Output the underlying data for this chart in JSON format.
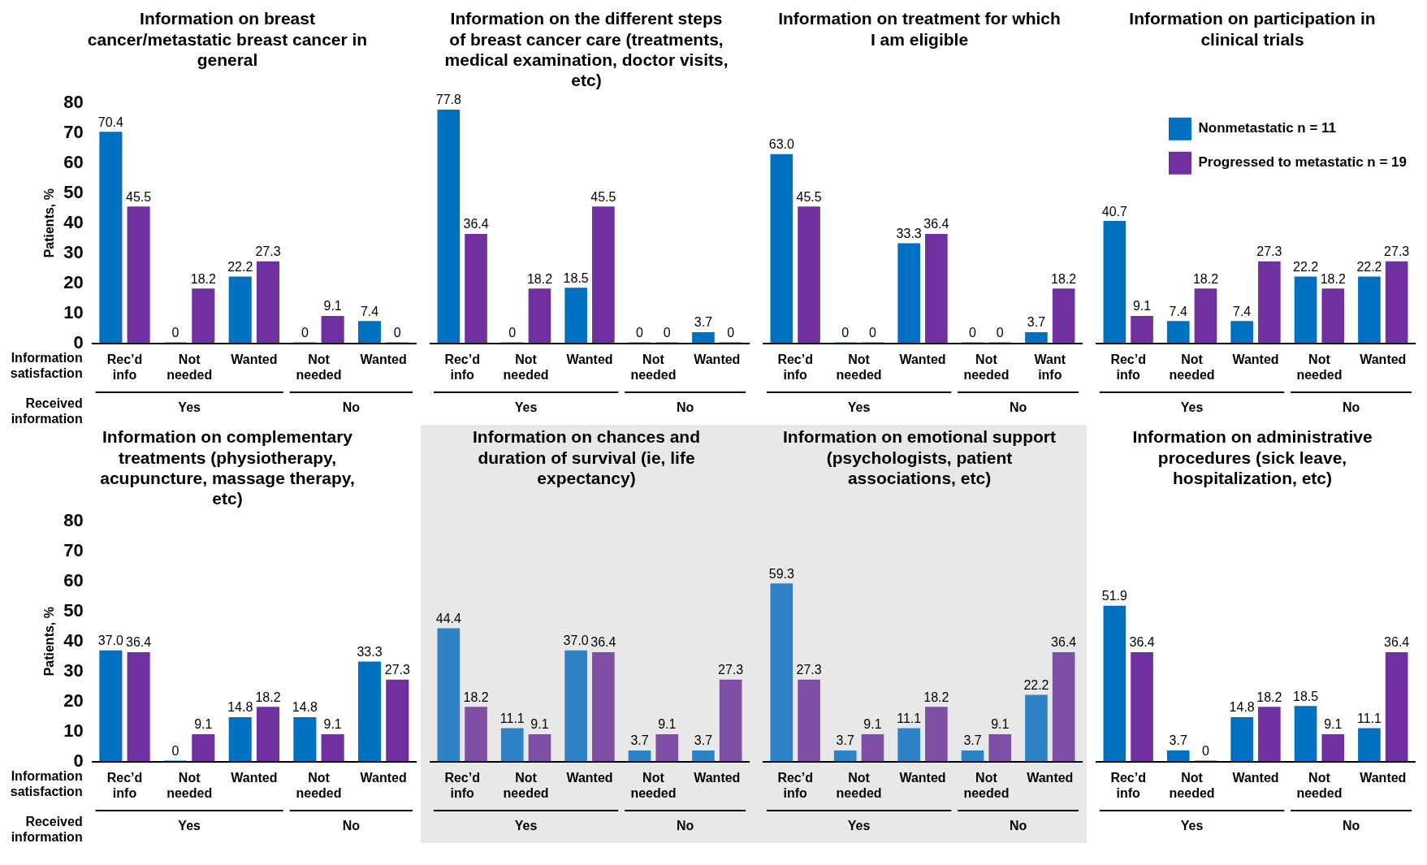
{
  "chart_data": [
    {
      "type": "bar",
      "title": "Information on breast cancer/metastatic breast cancer in general",
      "ylabel": "Patients, %",
      "categories": [
        "Rec’d info",
        "Not needed",
        "Wanted",
        "Not needed",
        "Wanted"
      ],
      "series": [
        {
          "color": "#0070c0",
          "values": [
            70.4,
            0,
            22.2,
            0,
            7.4
          ],
          "value_labels": [
            "70.4",
            "0",
            "22.2",
            "0",
            "7.4"
          ]
        },
        {
          "color": "#7030a0",
          "values": [
            45.5,
            18.2,
            27.3,
            9.1,
            0
          ],
          "value_labels": [
            "45.5",
            "18.2",
            "27.3",
            "9.1",
            "0"
          ]
        }
      ],
      "ylim": [
        0,
        80
      ],
      "yticks": [
        0,
        10,
        20,
        30,
        40,
        50,
        60,
        70,
        80
      ],
      "grid": false,
      "annotations": [
        "Yes",
        "No",
        "Information satisfaction",
        "Received information"
      ]
    },
    {
      "type": "bar",
      "title": "Information on the different steps of breast cancer care (treatments, medical examination, doctor visits, etc)",
      "categories": [
        "Rec’d info",
        "Not needed",
        "Wanted",
        "Not needed",
        "Wanted"
      ],
      "series": [
        {
          "color": "#0070c0",
          "values": [
            77.8,
            0,
            18.5,
            0,
            3.7
          ],
          "value_labels": [
            "77.8",
            "0",
            "18.5",
            "0",
            "3.7"
          ]
        },
        {
          "color": "#7030a0",
          "values": [
            36.4,
            18.2,
            45.5,
            0,
            0
          ],
          "value_labels": [
            "36.4",
            "18.2",
            "45.5",
            "0",
            "0"
          ]
        }
      ],
      "ylim": [
        0,
        80
      ],
      "yticks": [
        0,
        10,
        20,
        30,
        40,
        50,
        60,
        70,
        80
      ],
      "tick_labels": "x",
      "grid": false,
      "annotations": [
        "Yes",
        "No"
      ]
    },
    {
      "type": "bar",
      "title": "Information on treatment for which I am eligible",
      "categories": [
        "Rec’d info",
        "Not needed",
        "Wanted",
        "Not needed",
        "Want info"
      ],
      "series": [
        {
          "color": "#0070c0",
          "values": [
            63.0,
            0,
            33.3,
            0,
            3.7
          ],
          "value_labels": [
            "63.0",
            "0",
            "33.3",
            "0",
            "3.7"
          ]
        },
        {
          "color": "#7030a0",
          "values": [
            45.5,
            0,
            36.4,
            0,
            18.2
          ],
          "value_labels": [
            "45.5",
            "0",
            "36.4",
            "0",
            "18.2"
          ]
        }
      ],
      "ylim": [
        0,
        80
      ],
      "yticks": [
        0,
        10,
        20,
        30,
        40,
        50,
        60,
        70,
        80
      ],
      "tick_labels": "x",
      "grid": false,
      "annotations": [
        "Yes",
        "No"
      ]
    },
    {
      "type": "bar",
      "title": "Information on participation in clinical trials",
      "categories": [
        "Rec’d info",
        "Not needed",
        "Wanted",
        "Not needed",
        "Wanted"
      ],
      "series": [
        {
          "name": "Nonmetastatic n = 11",
          "color": "#0070c0",
          "values": [
            40.7,
            7.4,
            7.4,
            22.2,
            22.2
          ],
          "value_labels": [
            "40.7",
            "7.4",
            "7.4",
            "22.2",
            "22.2"
          ]
        },
        {
          "name": "Progressed to metastatic n = 19",
          "color": "#7030a0",
          "values": [
            9.1,
            18.2,
            27.3,
            18.2,
            27.3
          ],
          "value_labels": [
            "9.1",
            "18.2",
            "27.3",
            "18.2",
            "27.3"
          ]
        }
      ],
      "ylim": [
        0,
        80
      ],
      "yticks": [
        0,
        10,
        20,
        30,
        40,
        50,
        60,
        70,
        80
      ],
      "tick_labels": "x",
      "grid": false,
      "legend": "top right",
      "annotations": [
        "Yes",
        "No"
      ]
    },
    {
      "type": "bar",
      "title": "Information on complementary treatments (physiotherapy, acupuncture, massage therapy, etc)",
      "ylabel": "Patients, %",
      "categories": [
        "Rec’d info",
        "Not needed",
        "Wanted",
        "Not needed",
        "Wanted"
      ],
      "series": [
        {
          "color": "#0070c0",
          "values": [
            37.0,
            0,
            14.8,
            14.8,
            33.3
          ],
          "value_labels": [
            "37.0",
            "0",
            "14.8",
            "14.8",
            "33.3"
          ]
        },
        {
          "color": "#7030a0",
          "values": [
            36.4,
            9.1,
            18.2,
            9.1,
            27.3
          ],
          "value_labels": [
            "36.4",
            "9.1",
            "18.2",
            "9.1",
            "27.3"
          ]
        }
      ],
      "ylim": [
        0,
        80
      ],
      "yticks": [
        0,
        10,
        20,
        30,
        40,
        50,
        60,
        70,
        80
      ],
      "grid": false,
      "annotations": [
        "Yes",
        "No",
        "Information satisfaction",
        "Received information"
      ]
    },
    {
      "type": "bar",
      "title": "Information on chances and duration of survival (ie, life expectancy)",
      "categories": [
        "Rec’d info",
        "Not needed",
        "Wanted",
        "Not needed",
        "Wanted"
      ],
      "series": [
        {
          "color": "#2e83c6",
          "values": [
            44.4,
            11.1,
            37.0,
            3.7,
            3.7
          ],
          "value_labels": [
            "44.4",
            "11.1",
            "37.0",
            "3.7",
            "3.7"
          ]
        },
        {
          "color": "#7f4fa6",
          "values": [
            18.2,
            9.1,
            36.4,
            9.1,
            27.3
          ],
          "value_labels": [
            "18.2",
            "9.1",
            "36.4",
            "9.1",
            "27.3"
          ]
        }
      ],
      "ylim": [
        0,
        80
      ],
      "yticks": [
        0,
        10,
        20,
        30,
        40,
        50,
        60,
        70,
        80
      ],
      "tick_labels": "x",
      "grid": false,
      "annotations": [
        "Yes",
        "No"
      ]
    },
    {
      "type": "bar",
      "title": "Information on emotional support (psychologists, patient associations, etc)",
      "categories": [
        "Rec’d info",
        "Not needed",
        "Wanted",
        "Not needed",
        "Wanted"
      ],
      "series": [
        {
          "color": "#2e83c6",
          "values": [
            59.3,
            3.7,
            11.1,
            3.7,
            22.2
          ],
          "value_labels": [
            "59.3",
            "3.7",
            "11.1",
            "3.7",
            "22.2"
          ]
        },
        {
          "color": "#7f4fa6",
          "values": [
            27.3,
            9.1,
            18.2,
            9.1,
            36.4
          ],
          "value_labels": [
            "27.3",
            "9.1",
            "18.2",
            "9.1",
            "36.4"
          ]
        }
      ],
      "ylim": [
        0,
        80
      ],
      "yticks": [
        0,
        10,
        20,
        30,
        40,
        50,
        60,
        70,
        80
      ],
      "tick_labels": "x",
      "grid": false,
      "annotations": [
        "Yes",
        "No"
      ]
    },
    {
      "type": "bar",
      "title": "Information on administrative procedures (sick leave, hospitalization, etc)",
      "categories": [
        "Rec’d info",
        "Not needed",
        "Wanted",
        "Not needed",
        "Wanted"
      ],
      "series": [
        {
          "color": "#0070c0",
          "values": [
            51.9,
            3.7,
            14.8,
            18.5,
            11.1
          ],
          "value_labels": [
            "51.9",
            "3.7",
            "14.8",
            "18.5",
            "11.1"
          ]
        },
        {
          "color": "#7030a0",
          "values": [
            36.4,
            0,
            18.2,
            9.1,
            36.4
          ],
          "value_labels": [
            "36.4",
            "0",
            "18.2",
            "9.1",
            "36.4"
          ]
        }
      ],
      "ylim": [
        0,
        80
      ],
      "yticks": [
        0,
        10,
        20,
        30,
        40,
        50,
        60,
        70,
        80
      ],
      "tick_labels": "x",
      "grid": false,
      "annotations": [
        "Yes",
        "No"
      ]
    }
  ]
}
